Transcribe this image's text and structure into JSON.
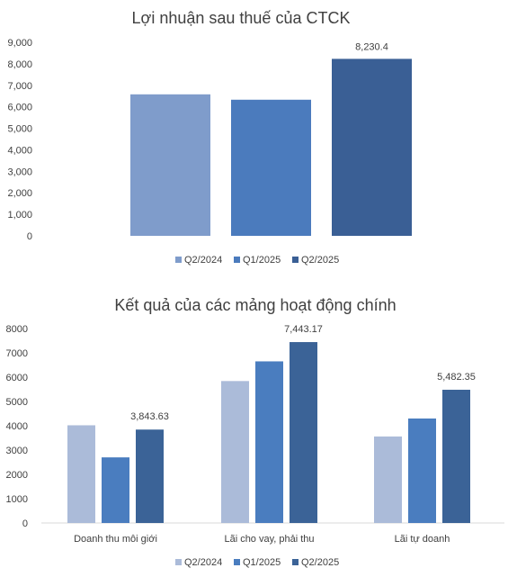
{
  "chart_data": [
    {
      "type": "bar",
      "title": "Lợi nhuận sau thuế của CTCK",
      "categories": [
        "Q2/2024",
        "Q1/2025",
        "Q2/2025"
      ],
      "values": [
        6580,
        6330,
        8230.4
      ],
      "data_labels": [
        "",
        "",
        "8,230.4"
      ],
      "ylim": [
        0,
        9000
      ],
      "yticks": [
        "0",
        "1,000",
        "2,000",
        "3,000",
        "4,000",
        "5,000",
        "6,000",
        "7,000",
        "8,000",
        "9,000"
      ],
      "grid": false,
      "legend": "bottom",
      "legend_entries": [
        "Q2/2024",
        "Q1/2025",
        "Q2/2025"
      ],
      "colors": [
        "#7f9ccb",
        "#4b7bbd",
        "#3a5f95"
      ]
    },
    {
      "type": "bar",
      "title": "Kết quả của các mảng hoạt động chính",
      "categories": [
        "Doanh thu môi giới",
        "Lãi cho vay, phải thu",
        "Lãi tự doanh"
      ],
      "series": [
        {
          "name": "Q2/2024",
          "values": [
            4020,
            5840,
            3560
          ],
          "data_labels": [
            "",
            "",
            ""
          ]
        },
        {
          "name": "Q1/2025",
          "values": [
            2700,
            6650,
            4300
          ],
          "data_labels": [
            "",
            "",
            ""
          ]
        },
        {
          "name": "Q2/2025",
          "values": [
            3843.63,
            7443.17,
            5482.35
          ],
          "data_labels": [
            "3,843.63",
            "7,443.17",
            "5,482.35"
          ]
        }
      ],
      "ylim": [
        0,
        8000
      ],
      "yticks": [
        "0",
        "1000",
        "2000",
        "3000",
        "4000",
        "5000",
        "6000",
        "7000",
        "8000"
      ],
      "grid": false,
      "legend": "bottom",
      "colors": [
        "#abbbd9",
        "#4a7dbf",
        "#3b6397"
      ]
    }
  ]
}
